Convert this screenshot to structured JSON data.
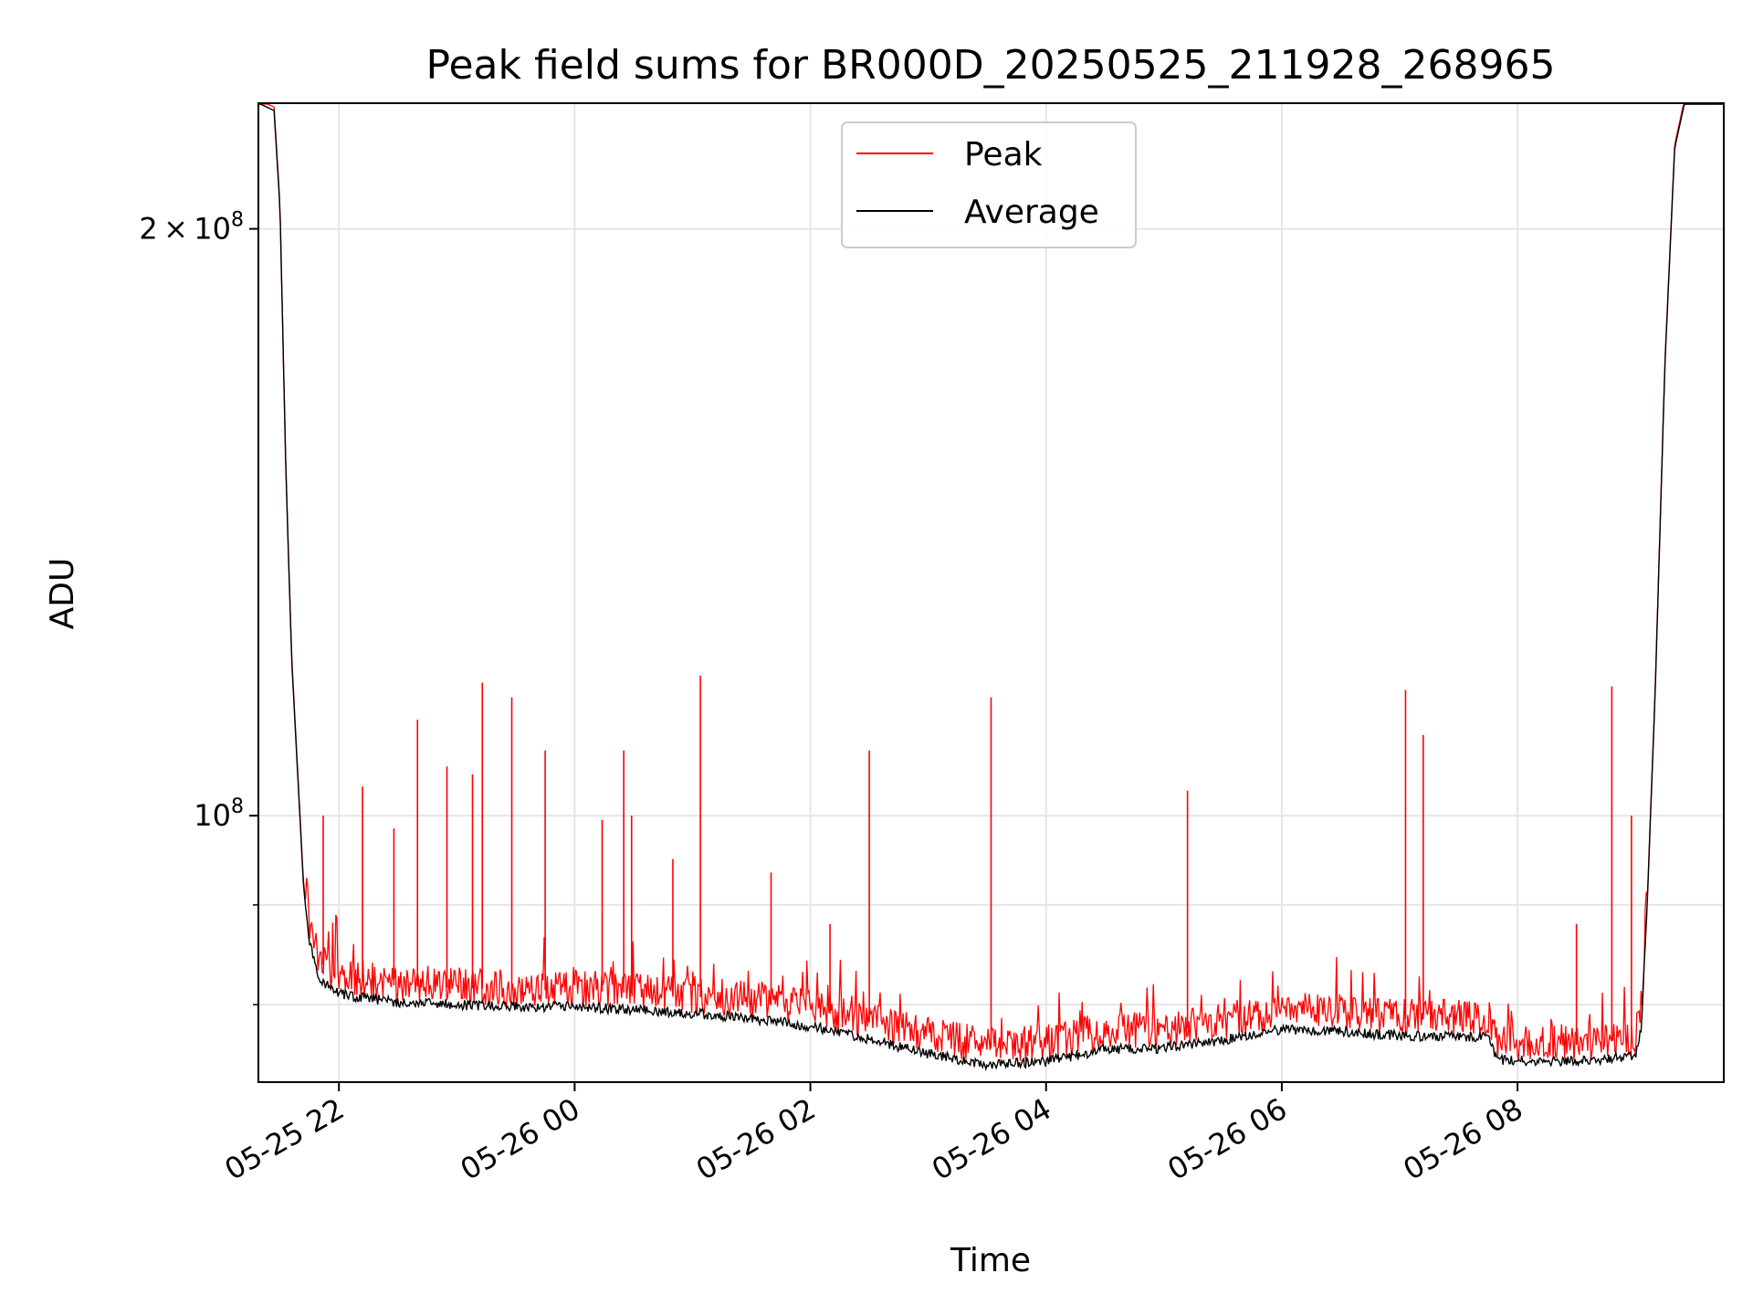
{
  "chart_data": {
    "type": "line",
    "title": "Peak field sums for BR000D_20250525_211928_268965",
    "xlabel": "Time",
    "ylabel": "ADU",
    "y_scale": "log",
    "x_range": [
      "05-25 21:19",
      "05-26 09:45"
    ],
    "ylim": [
      73000000,
      232000000
    ],
    "x_ticks": [
      {
        "t": "05-25 22:00",
        "label": "05-25 22"
      },
      {
        "t": "05-26 00:00",
        "label": "05-26 00"
      },
      {
        "t": "05-26 02:00",
        "label": "05-26 02"
      },
      {
        "t": "05-26 04:00",
        "label": "05-26 04"
      },
      {
        "t": "05-26 06:00",
        "label": "05-26 06"
      },
      {
        "t": "05-26 08:00",
        "label": "05-26 08"
      }
    ],
    "y_ticks": [
      {
        "value": 100000000,
        "base": "10",
        "exp": "8",
        "coef": ""
      },
      {
        "value": 200000000,
        "base": "10",
        "exp": "8",
        "coef": "2"
      }
    ],
    "y_minor_grid": [
      80000000,
      90000000
    ],
    "grid": true,
    "legend_position": "upper center",
    "series": [
      {
        "name": "Average",
        "color": "#000000",
        "points": [
          [
            "05-25 21:19",
            232000000
          ],
          [
            "05-25 21:27",
            230000000
          ],
          [
            "05-25 21:30",
            205000000
          ],
          [
            "05-25 21:33",
            150000000
          ],
          [
            "05-25 21:36",
            120000000
          ],
          [
            "05-25 21:39",
            105000000
          ],
          [
            "05-25 21:42",
            92000000
          ],
          [
            "05-25 21:45",
            86000000
          ],
          [
            "05-25 21:50",
            82500000
          ],
          [
            "05-25 22:00",
            81000000
          ],
          [
            "05-25 22:30",
            80200000
          ],
          [
            "05-25 23:00",
            80000000
          ],
          [
            "05-25 23:30",
            79800000
          ],
          [
            "05-26 00:00",
            79800000
          ],
          [
            "05-26 00:30",
            79500000
          ],
          [
            "05-26 01:00",
            79200000
          ],
          [
            "05-26 01:30",
            78700000
          ],
          [
            "05-26 02:00",
            78000000
          ],
          [
            "05-26 02:30",
            76800000
          ],
          [
            "05-26 03:00",
            75500000
          ],
          [
            "05-26 03:30",
            74500000
          ],
          [
            "05-26 04:00",
            74800000
          ],
          [
            "05-26 04:30",
            75900000
          ],
          [
            "05-26 05:00",
            76000000
          ],
          [
            "05-26 05:30",
            76700000
          ],
          [
            "05-26 06:00",
            77700000
          ],
          [
            "05-26 06:30",
            77500000
          ],
          [
            "05-26 07:00",
            77100000
          ],
          [
            "05-26 07:45",
            77000000
          ],
          [
            "05-26 07:50",
            74900000
          ],
          [
            "05-26 08:30",
            74800000
          ],
          [
            "05-26 09:00",
            75300000
          ],
          [
            "05-26 09:03",
            78000000
          ],
          [
            "05-26 09:06",
            90000000
          ],
          [
            "05-26 09:10",
            115000000
          ],
          [
            "05-26 09:15",
            170000000
          ],
          [
            "05-26 09:20",
            220000000
          ],
          [
            "05-26 09:25",
            232000000
          ],
          [
            "05-26 09:45",
            232000000
          ]
        ]
      },
      {
        "name": "Peak",
        "color": "#ff0000",
        "spikes": [
          [
            "05-25 21:52",
            100000000
          ],
          [
            "05-25 22:12",
            103500000
          ],
          [
            "05-25 22:28",
            98500000
          ],
          [
            "05-25 22:40",
            112000000
          ],
          [
            "05-25 22:55",
            106000000
          ],
          [
            "05-25 23:08",
            105000000
          ],
          [
            "05-25 23:13",
            117000000
          ],
          [
            "05-25 23:28",
            115000000
          ],
          [
            "05-25 23:45",
            108000000
          ],
          [
            "05-26 00:14",
            99500000
          ],
          [
            "05-26 00:25",
            108000000
          ],
          [
            "05-26 00:29",
            100000000
          ],
          [
            "05-26 00:50",
            95000000
          ],
          [
            "05-26 01:04",
            118000000
          ],
          [
            "05-26 01:40",
            93500000
          ],
          [
            "05-26 02:30",
            108000000
          ],
          [
            "05-26 02:10",
            88000000
          ],
          [
            "05-26 03:32",
            115000000
          ],
          [
            "05-26 05:12",
            103000000
          ],
          [
            "05-26 07:03",
            116000000
          ],
          [
            "05-26 07:12",
            110000000
          ],
          [
            "05-26 08:30",
            88000000
          ],
          [
            "05-26 08:48",
            116500000
          ],
          [
            "05-26 08:58",
            100000000
          ]
        ]
      }
    ]
  }
}
